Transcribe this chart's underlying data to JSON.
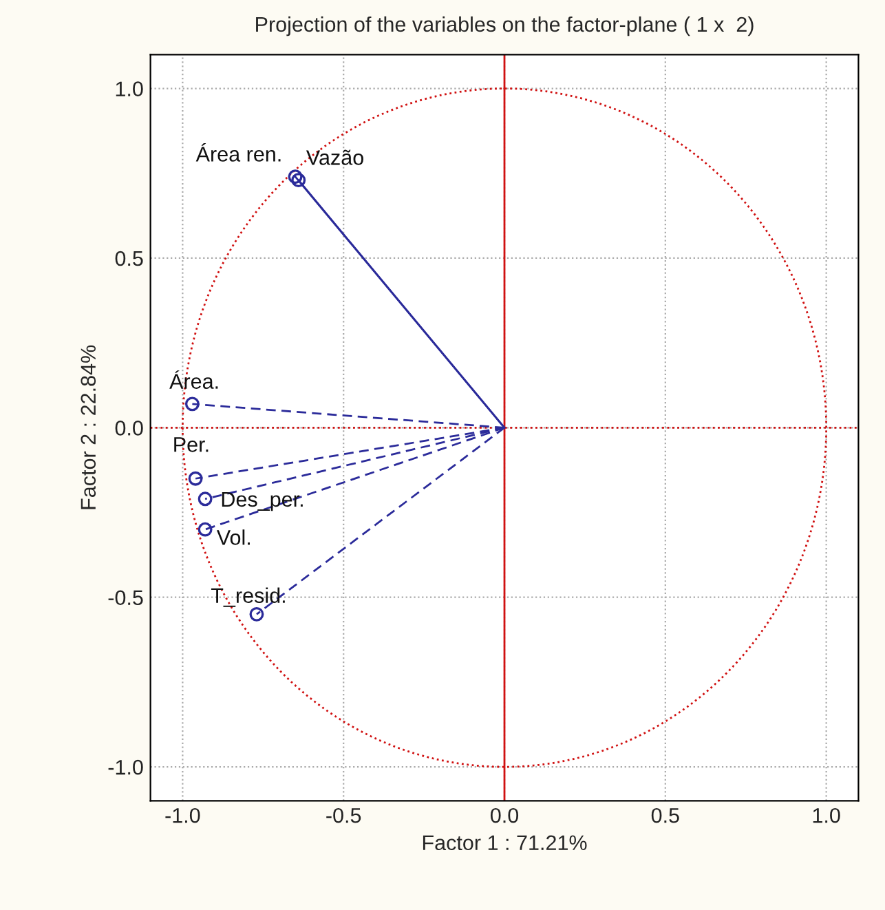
{
  "chart_data": {
    "type": "scatter",
    "title": "Projection of the variables on the factor-plane ( 1 x  2)",
    "xlabel": "Factor 1 : 71.21%",
    "ylabel": "Factor 2 : 22.84%",
    "xlim": [
      -1.1,
      1.1
    ],
    "ylim": [
      -1.1,
      1.1
    ],
    "xticks": [
      {
        "value": -1,
        "label": "-1.0"
      },
      -0.5,
      {
        "value": 0,
        "label": "0.0"
      },
      0.5,
      {
        "value": 1,
        "label": "1.0"
      }
    ],
    "yticks": [
      {
        "value": -1,
        "label": "-1.0"
      },
      -0.5,
      {
        "value": 0,
        "label": "0.0"
      },
      0.5,
      {
        "value": 1,
        "label": "1.0"
      }
    ],
    "grid": true,
    "series": [
      {
        "type": "line",
        "color": "#2b2b9a",
        "line_style": "solid",
        "marker": "none",
        "x": [
          0,
          -0.65
        ],
        "values": [
          0,
          0.74
        ]
      },
      {
        "type": "line",
        "color": "#2b2b9a",
        "line_style": "solid",
        "marker": "none",
        "x": [
          0,
          -0.64
        ],
        "values": [
          0,
          0.73
        ]
      },
      {
        "type": "line",
        "color": "#2b2b9a",
        "line_style": "dashed",
        "marker": "none",
        "x": [
          0,
          -0.97
        ],
        "values": [
          0,
          0.07
        ]
      },
      {
        "type": "line",
        "color": "#2b2b9a",
        "line_style": "dashed",
        "marker": "none",
        "x": [
          0,
          -0.96
        ],
        "values": [
          0,
          -0.15
        ]
      },
      {
        "type": "line",
        "color": "#2b2b9a",
        "line_style": "dashed",
        "marker": "none",
        "x": [
          0,
          -0.93
        ],
        "values": [
          0,
          -0.21
        ]
      },
      {
        "type": "line",
        "color": "#2b2b9a",
        "line_style": "dashed",
        "marker": "none",
        "x": [
          0,
          -0.93
        ],
        "values": [
          0,
          -0.3
        ]
      },
      {
        "type": "line",
        "color": "#2b2b9a",
        "line_style": "dashed",
        "marker": "none",
        "x": [
          0,
          -0.77
        ],
        "values": [
          0,
          -0.55
        ]
      },
      {
        "color": "#2b2b9a",
        "marker": "circle",
        "x": [
          -0.65,
          -0.64,
          -0.97,
          -0.96,
          -0.93,
          -0.93,
          -0.77
        ],
        "values": [
          0.74,
          0.73,
          0.07,
          -0.15,
          -0.21,
          -0.3,
          -0.55
        ]
      }
    ],
    "ref_lines": [
      {
        "axis": "x",
        "value": 0,
        "color": "#d01010",
        "line_style": "solid"
      },
      {
        "axis": "y",
        "value": 0,
        "color": "#d01010",
        "line_style": "dotted"
      }
    ],
    "annotations": [
      {
        "text": "Área ren.",
        "x": -0.65,
        "y": 0.74
      },
      {
        "text": "Vazão",
        "x": -0.64,
        "y": 0.73
      },
      {
        "text": "Área.",
        "x": -0.97,
        "y": 0.07
      },
      {
        "text": "Per.",
        "x": -0.96,
        "y": -0.15
      },
      {
        "text": "Des_per.",
        "x": -0.93,
        "y": -0.21
      },
      {
        "text": "Vol.",
        "x": -0.93,
        "y": -0.3
      },
      {
        "text": "T_resid.",
        "x": -0.77,
        "y": -0.55
      }
    ]
  }
}
